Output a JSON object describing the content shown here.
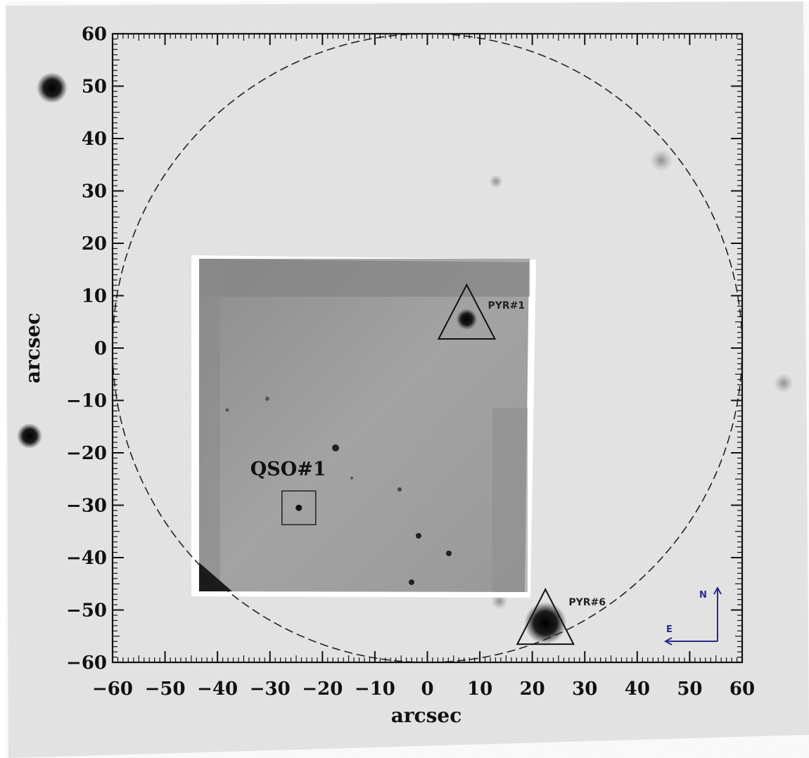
{
  "axes": {
    "x_label": "arcsec",
    "y_label": "arcsec",
    "x_ticks": [
      -60,
      -50,
      -40,
      -30,
      -20,
      -10,
      0,
      10,
      20,
      30,
      40,
      50,
      60
    ],
    "y_ticks": [
      60,
      50,
      40,
      30,
      20,
      10,
      0,
      -10,
      -20,
      -30,
      -40,
      -50,
      -60
    ],
    "x_range": [
      -60,
      60
    ],
    "y_range": [
      -60,
      60
    ],
    "tick_labels": {
      "x": [
        "−60",
        "−50",
        "−40",
        "−30",
        "−20",
        "−10",
        "0",
        "10",
        "20",
        "30",
        "40",
        "50",
        "60"
      ],
      "y": [
        "60",
        "50",
        "40",
        "30",
        "20",
        "10",
        "0",
        "−10",
        "−20",
        "−30",
        "−40",
        "−50",
        "−60"
      ]
    }
  },
  "field_circle": {
    "center_arcsec": [
      0,
      0
    ],
    "radius_arcsec": 60,
    "style": "dashed"
  },
  "markers": {
    "qso1": {
      "label": "QSO#1",
      "x_arcsec": -24.5,
      "y_arcsec": -30.5,
      "shape": "square"
    },
    "pyr1": {
      "label": "PYR#1",
      "x_arcsec": 7.5,
      "y_arcsec": 5.5,
      "shape": "triangle"
    },
    "pyr6": {
      "label": "PYR#6",
      "x_arcsec": 22.5,
      "y_arcsec": -52.5,
      "shape": "triangle"
    }
  },
  "compass": {
    "north_label": "N",
    "east_label": "E",
    "color": "#2a2a8c"
  },
  "colors": {
    "background_sky": "#e6e6e6",
    "inset": "#9a9a9a",
    "frame": "#111111"
  }
}
